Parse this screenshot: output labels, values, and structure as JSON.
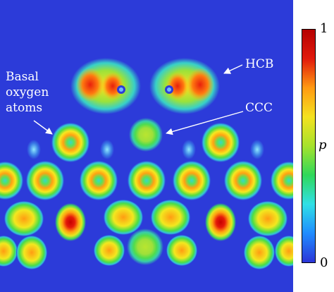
{
  "annotations": {
    "hcb": "HCB",
    "ccc": "CCC",
    "basal": [
      "Basal",
      "oxygen",
      "atoms"
    ]
  },
  "colorbar": {
    "max_label": "1",
    "min_label": "0",
    "variable": "p",
    "colors": [
      "#2b35d8",
      "#1f8cff",
      "#30e0e6",
      "#2fd85a",
      "#a6e22c",
      "#f4e21f",
      "#ff9a12",
      "#e11a0c",
      "#b50000"
    ]
  }
}
